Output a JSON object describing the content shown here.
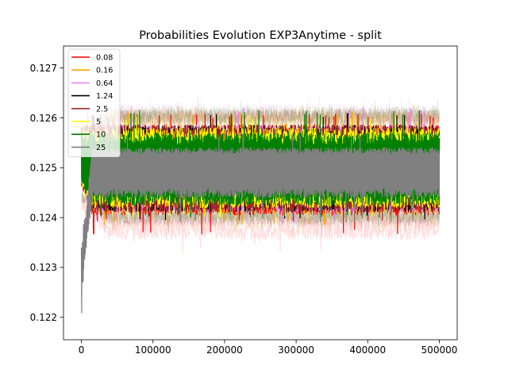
{
  "chart_data": {
    "type": "line",
    "title": "Probabilities Evolution EXP3Anytime  - split",
    "xlabel": "",
    "ylabel": "",
    "xlim": [
      -25000,
      525000
    ],
    "ylim": [
      0.12155,
      0.12744
    ],
    "x_ticks": [
      {
        "value": 0,
        "label": "0"
      },
      {
        "value": 100000,
        "label": "100000"
      },
      {
        "value": 200000,
        "label": "200000"
      },
      {
        "value": 300000,
        "label": "300000"
      },
      {
        "value": 400000,
        "label": "400000"
      },
      {
        "value": 500000,
        "label": "500000"
      }
    ],
    "y_ticks": [
      {
        "value": 0.122,
        "label": "0.122"
      },
      {
        "value": 0.123,
        "label": "0.123"
      },
      {
        "value": 0.124,
        "label": "0.124"
      },
      {
        "value": 0.125,
        "label": "0.125"
      },
      {
        "value": 0.126,
        "label": "0.126"
      },
      {
        "value": 0.127,
        "label": "0.127"
      }
    ],
    "grid": false,
    "legend_position": "top-left",
    "center": 0.125,
    "series": [
      {
        "name": "0.08",
        "color": "#ff0000",
        "upper": 0.12585,
        "lower": 0.12405,
        "peak_upper": 0.12608,
        "peak_lower": 0.12366
      },
      {
        "name": "0.16",
        "color": "#ffa500",
        "upper": 0.12588,
        "lower": 0.12408,
        "peak_upper": 0.12612,
        "peak_lower": 0.12385
      },
      {
        "name": "0.64",
        "color": "#ee82ee",
        "upper": 0.12586,
        "lower": 0.1241,
        "peak_upper": 0.1262,
        "peak_lower": 0.1239
      },
      {
        "name": "1.24",
        "color": "#000000",
        "upper": 0.12585,
        "lower": 0.12412,
        "peak_upper": 0.1261,
        "peak_lower": 0.12395
      },
      {
        "name": "2.5",
        "color": "#a52a2a",
        "upper": 0.12586,
        "lower": 0.1241,
        "peak_upper": 0.12608,
        "peak_lower": 0.12392
      },
      {
        "name": "5",
        "color": "#ffff00",
        "upper": 0.1258,
        "lower": 0.1242,
        "peak_upper": 0.12605,
        "peak_lower": 0.124
      },
      {
        "name": "10",
        "color": "#008000",
        "upper": 0.1257,
        "lower": 0.12425,
        "peak_upper": 0.12615,
        "peak_lower": 0.124
      },
      {
        "name": "25",
        "color": "#808080",
        "upper": 0.1254,
        "lower": 0.1244,
        "peak_upper": 0.1257,
        "peak_lower": 0.1239,
        "initial_dip": 0.122
      }
    ]
  }
}
